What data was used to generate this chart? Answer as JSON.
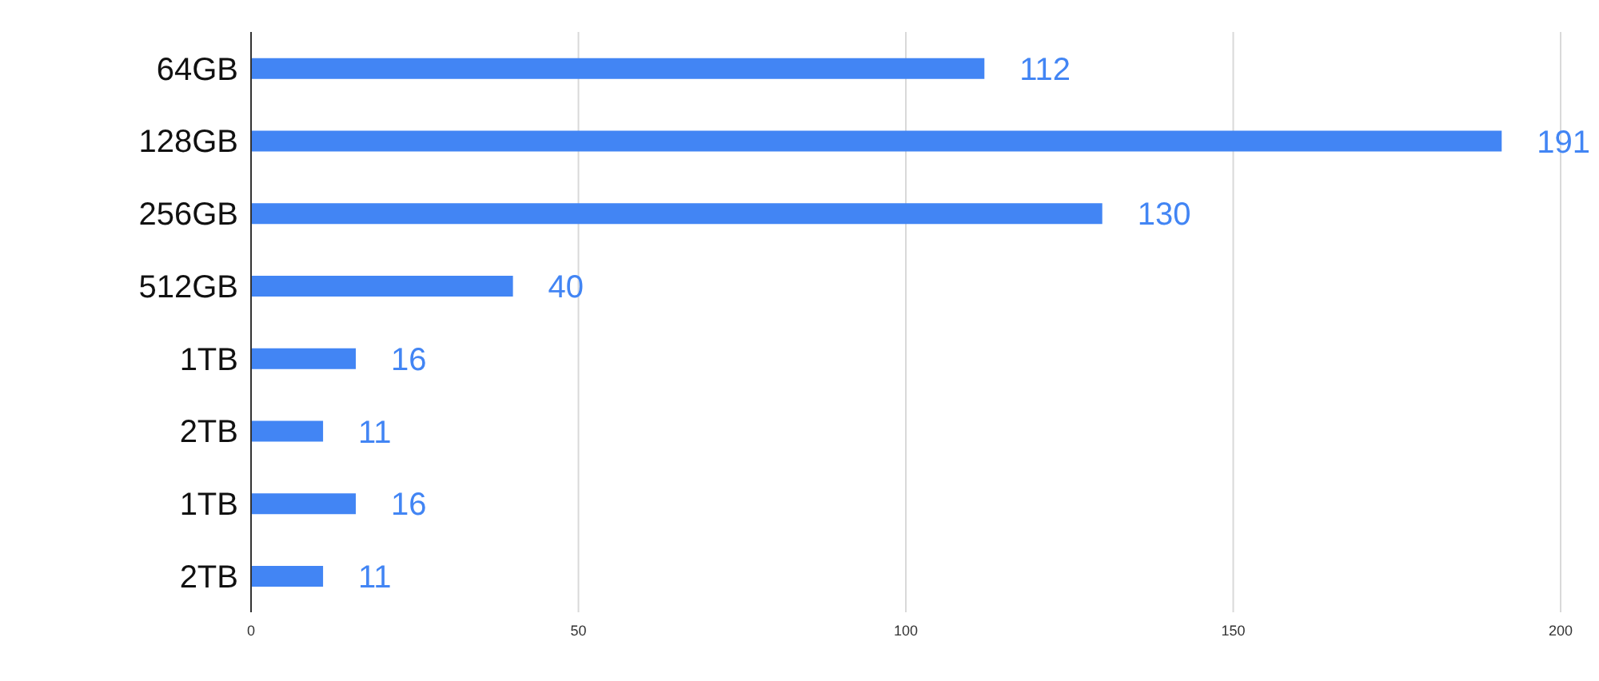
{
  "chart_data": {
    "type": "bar",
    "orientation": "horizontal",
    "categories": [
      "64GB",
      "128GB",
      "256GB",
      "512GB",
      "1TB",
      "2TB",
      "1TB",
      "2TB"
    ],
    "values": [
      112,
      191,
      130,
      40,
      16,
      11,
      16,
      11
    ],
    "color": "#4285f4",
    "xlim": [
      0,
      200
    ],
    "xticks": [
      0,
      50,
      100,
      150,
      200
    ],
    "grid": "x",
    "data_labels": true,
    "legend": false
  }
}
